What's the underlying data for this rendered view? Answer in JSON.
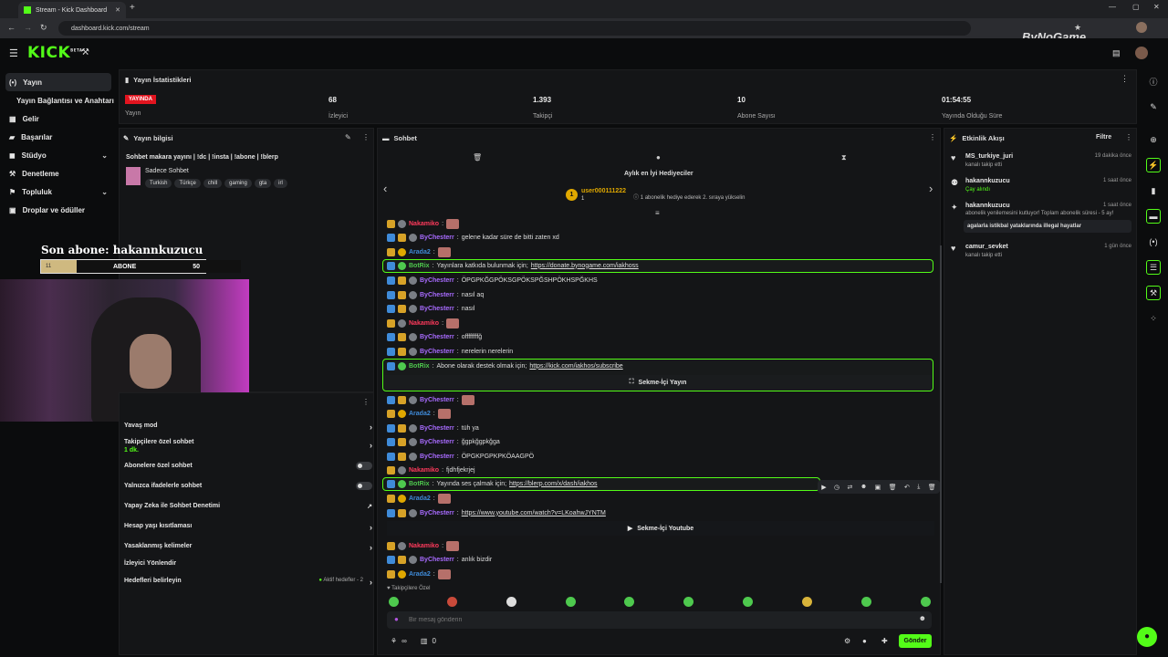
{
  "browser": {
    "tab_title": "Stream - Kick Dashboard",
    "url": "dashboard.kick.com/stream",
    "watermark": "ByNoGame"
  },
  "header": {
    "logo": "KICK",
    "logo_sup": "BETA"
  },
  "nav": {
    "items": [
      {
        "label": "Yayın",
        "icon": "stream-icon"
      },
      {
        "label": "Yayın Bağlantısı ve Anahtarı",
        "icon": ""
      },
      {
        "label": "Gelir",
        "icon": "revenue-icon"
      },
      {
        "label": "Başarılar",
        "icon": "achievements-icon"
      },
      {
        "label": "Stüdyo",
        "icon": "studio-icon"
      },
      {
        "label": "Denetleme",
        "icon": "moderation-icon"
      },
      {
        "label": "Topluluk",
        "icon": "community-icon"
      },
      {
        "label": "Droplar ve ödüller",
        "icon": "drops-icon"
      }
    ]
  },
  "stats": {
    "title": "Yayın İstatistikleri",
    "live_label": "YAYINDA",
    "status_label": "Yayın",
    "viewers": "68",
    "viewers_label": "İzleyici",
    "followers": "1.393",
    "followers_label": "Takipçi",
    "subs": "10",
    "subs_label": "Abone Sayısı",
    "uptime": "01:54:55",
    "uptime_label": "Yayında Olduğu Süre"
  },
  "stream_info": {
    "title": "Yayın bilgisi",
    "stream_title": "Sohbet makara yayını | !dc | !insta | !abone | !blerp",
    "category": "Sadece Sohbet",
    "tags": [
      "Turkish",
      "Türkçe",
      "chill",
      "gaming",
      "gta",
      "irl"
    ]
  },
  "overlay": {
    "sub_title": "Son abone: hakannkuzucu",
    "goal_current": "11",
    "goal_label": "ABONE",
    "goal_target": "50",
    "goal_progress": 0.22
  },
  "chat_settings": {
    "slow_mode": "Yavaş mod",
    "followers_only": "Takipçilere özel sohbet",
    "followers_only_value": "1 dk.",
    "subs_only": "Abonelere özel sohbet",
    "emotes_only": "Yalnızca ifadelerle sohbet",
    "ai_moderation": "Yapay Zeka ile Sohbet Denetimi",
    "account_age": "Hesap yaşı kısıtlaması",
    "banned_words": "Yasaklanmış kelimeler",
    "viewer_redirect": "İzleyici Yönlendir",
    "goals": "Hedefleri belirleyin",
    "goals_status": "Aktif hedefler - 2"
  },
  "chat": {
    "title": "Sohbet",
    "leaderboard_title": "Aylık en İyi Hediyeciler",
    "top_gifter": "user000111222",
    "top_gifter_count": "1",
    "top_gifter_note": "1 abonelik hediye ederek 2. sıraya yükselin",
    "messages": [
      {
        "user": "Nakamiko",
        "color": "#ff3a5c",
        "text": "",
        "emote": true,
        "badges": [
          "crown",
          "grey"
        ]
      },
      {
        "user": "ByChesterr",
        "color": "#a86bff",
        "text": "gelene kadar süre de bitti zaten xd",
        "badges": [
          "blue",
          "crown",
          "grey"
        ]
      },
      {
        "user": "Arada2",
        "color": "#3f8bd9",
        "text": "",
        "emote": true,
        "badges": [
          "crown",
          "gold"
        ]
      },
      {
        "user": "ByChesterr",
        "color": "#a86bff",
        "text": "ÖPGPKĞGPÖKSGPÖKSPĞSHPÖKHSPĞKHS",
        "badges": [
          "blue",
          "crown",
          "grey"
        ]
      },
      {
        "user": "ByChesterr",
        "color": "#a86bff",
        "text": "nasıl aq",
        "badges": [
          "blue",
          "crown",
          "grey"
        ]
      },
      {
        "user": "ByChesterr",
        "color": "#a86bff",
        "text": "nasıl",
        "badges": [
          "blue",
          "crown",
          "grey"
        ]
      },
      {
        "user": "Nakamiko",
        "color": "#ff3a5c",
        "text": "",
        "emote": true,
        "badges": [
          "crown",
          "grey"
        ]
      },
      {
        "user": "ByChesterr",
        "color": "#a86bff",
        "text": "offffffffğ",
        "badges": [
          "blue",
          "crown",
          "grey"
        ]
      },
      {
        "user": "ByChesterr",
        "color": "#a86bff",
        "text": "nerelerin nerelerin",
        "badges": [
          "blue",
          "crown",
          "grey"
        ]
      },
      {
        "user": "ByChesterr",
        "color": "#a86bff",
        "text": "",
        "emote": true,
        "badges": [
          "blue",
          "crown",
          "grey"
        ]
      },
      {
        "user": "Arada2",
        "color": "#3f8bd9",
        "text": "",
        "emote": true,
        "badges": [
          "crown",
          "gold"
        ]
      },
      {
        "user": "ByChesterr",
        "color": "#a86bff",
        "text": "tüh ya",
        "badges": [
          "blue",
          "crown",
          "grey"
        ]
      },
      {
        "user": "ByChesterr",
        "color": "#a86bff",
        "text": "ğgpkğgpkğga",
        "badges": [
          "blue",
          "crown",
          "grey"
        ]
      },
      {
        "user": "ByChesterr",
        "color": "#a86bff",
        "text": "ÖPGKPGPKPKÖAAGPÖ",
        "badges": [
          "blue",
          "crown",
          "grey"
        ]
      },
      {
        "user": "Nakamiko",
        "color": "#ff3a5c",
        "text": "fjdhfjekrjej",
        "badges": [
          "crown",
          "grey"
        ]
      },
      {
        "user": "Arada2",
        "color": "#3f8bd9",
        "text": "",
        "emote": true,
        "badges": [
          "crown",
          "gold"
        ]
      },
      {
        "user": "ByChesterr",
        "color": "#a86bff",
        "text": "https://www.youtube.com/watch?v=LKoahwJYNTM",
        "link": true,
        "badges": [
          "blue",
          "crown",
          "grey"
        ]
      },
      {
        "user": "Nakamiko",
        "color": "#ff3a5c",
        "text": "",
        "emote": true,
        "badges": [
          "crown",
          "grey"
        ]
      },
      {
        "user": "ByChesterr",
        "color": "#a86bff",
        "text": "anlık bizdir",
        "badges": [
          "blue",
          "crown",
          "grey"
        ]
      },
      {
        "user": "Arada2",
        "color": "#3f8bd9",
        "text": "",
        "emote": true,
        "badges": [
          "crown",
          "gold"
        ]
      }
    ],
    "bot_messages": [
      {
        "user": "BotRix",
        "text": "Yayınlara katkıda bulunmak için;",
        "link": "https://donate.bynogame.com/iakhoss"
      },
      {
        "user": "BotRix",
        "text": "Abone olarak destek olmak için;",
        "link": "https://kick.com/iakhos/subscribe"
      },
      {
        "user": "BotRix",
        "text": "Yayında ses çalmak için;",
        "link": "https://blerp.com/x/dash/iakhos"
      }
    ],
    "embed_1": "Sekme-İçi Yayın",
    "embed_2": "Sekme-İçi Youtube",
    "followers_label": "Takipçilere Özel",
    "input_placeholder": "Bir mesaj gönderin",
    "points": "∞",
    "count": "0",
    "send_label": "Gönder"
  },
  "events": {
    "title": "Etkinlik Akışı",
    "filter": "Filtre",
    "items": [
      {
        "name": "MS_turkiye_juri",
        "sub": "kanalı takip etti",
        "time": "19 dakika önce",
        "icon": "heart-icon"
      },
      {
        "name": "hakannkuzucu",
        "sub": "Çay alındı",
        "time": "1 saat önce",
        "icon": "reward-icon"
      },
      {
        "name": "hakannkuzucu",
        "sub": "abonelik yenilemesini kutluyor! Toplam abonelik süresi - 5 ay!",
        "time": "1 saat önce",
        "icon": "sub-icon",
        "quote": "agalarla istikbal yataklarında illegal hayatlar"
      },
      {
        "name": "camur_sevket",
        "sub": "kanalı takip etti",
        "time": "1 gün önce",
        "icon": "heart-icon"
      }
    ]
  },
  "colors": {
    "accent": "#53fc18",
    "live": "#e2141f"
  }
}
